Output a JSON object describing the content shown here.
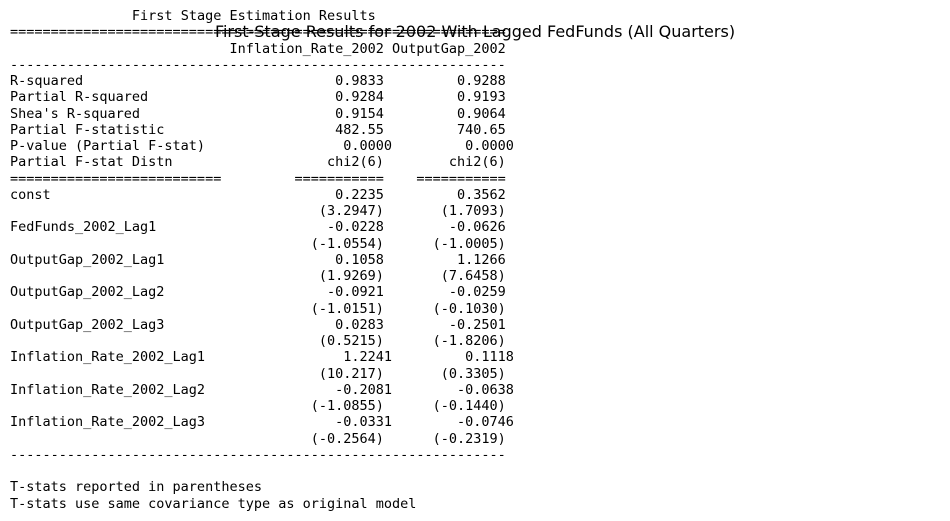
{
  "plot_title": "First-Stage Results for 2002 With Lagged FedFunds (All Quarters)",
  "table": {
    "heading": "First Stage Estimation Results",
    "columns": [
      "Inflation_Rate_2002",
      "OutputGap_2002"
    ],
    "diagnostics": [
      {
        "label": "R-squared",
        "values": [
          "0.9833",
          "0.9288"
        ]
      },
      {
        "label": "Partial R-squared",
        "values": [
          "0.9284",
          "0.9193"
        ]
      },
      {
        "label": "Shea's R-squared",
        "values": [
          "0.9154",
          "0.9064"
        ]
      },
      {
        "label": "Partial F-statistic",
        "values": [
          "482.55",
          "740.65"
        ]
      },
      {
        "label": "P-value (Partial F-stat)",
        "values": [
          "0.0000",
          "0.0000"
        ]
      },
      {
        "label": "Partial F-stat Distn",
        "values": [
          "chi2(6)",
          "chi2(6)"
        ]
      }
    ],
    "coefficients": [
      {
        "name": "const",
        "estimates": [
          "0.2235",
          "0.3562"
        ],
        "tstats": [
          "(3.2947)",
          "(1.7093)"
        ]
      },
      {
        "name": "FedFunds_2002_Lag1",
        "estimates": [
          "-0.0228",
          "-0.0626"
        ],
        "tstats": [
          "(-1.0554)",
          "(-1.0005)"
        ]
      },
      {
        "name": "OutputGap_2002_Lag1",
        "estimates": [
          "0.1058",
          "1.1266"
        ],
        "tstats": [
          "(1.9269)",
          "(7.6458)"
        ]
      },
      {
        "name": "OutputGap_2002_Lag2",
        "estimates": [
          "-0.0921",
          "-0.0259"
        ],
        "tstats": [
          "(-1.0151)",
          "(-0.1030)"
        ]
      },
      {
        "name": "OutputGap_2002_Lag3",
        "estimates": [
          "0.0283",
          "-0.2501"
        ],
        "tstats": [
          "(0.5215)",
          "(-1.8206)"
        ]
      },
      {
        "name": "Inflation_Rate_2002_Lag1",
        "estimates": [
          "1.2241",
          "0.1118"
        ],
        "tstats": [
          "(10.217)",
          "(0.3305)"
        ]
      },
      {
        "name": "Inflation_Rate_2002_Lag2",
        "estimates": [
          "-0.2081",
          "-0.0638"
        ],
        "tstats": [
          "(-1.0855)",
          "(-0.1440)"
        ]
      },
      {
        "name": "Inflation_Rate_2002_Lag3",
        "estimates": [
          "-0.0331",
          "-0.0746"
        ],
        "tstats": [
          "(-0.2564)",
          "(-0.2319)"
        ]
      }
    ],
    "notes": [
      "T-stats reported in parentheses",
      "T-stats use same covariance type as original model"
    ]
  }
}
